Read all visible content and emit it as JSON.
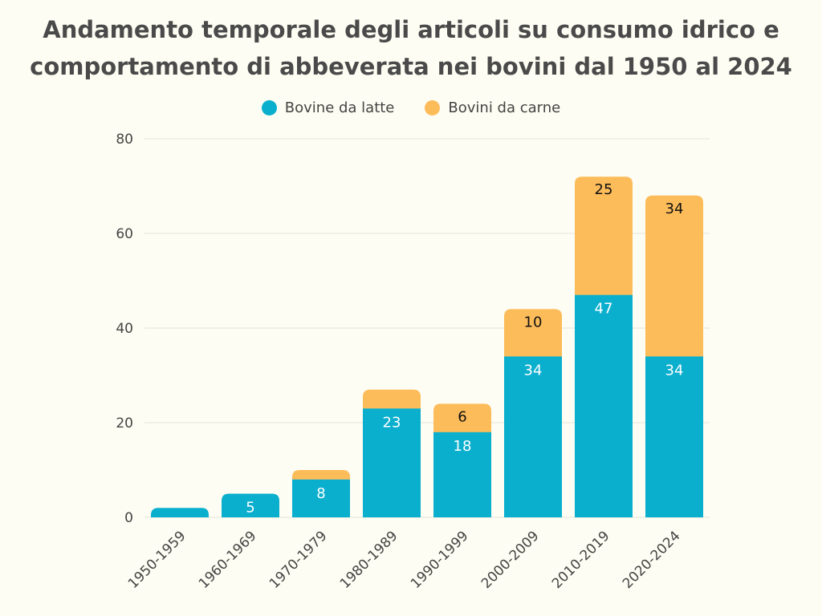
{
  "title_lines": [
    "Andamento temporale degli articoli su consumo idrico e",
    "comportamento di abbeverata nei bovini dal 1950 al 2024"
  ],
  "colors": {
    "dairy": "#0bafce",
    "beef": "#fdbc5a",
    "grid": "#e2e2d8",
    "text": "#444444"
  },
  "chart_data": {
    "type": "bar",
    "stacked": true,
    "title": "Andamento temporale degli articoli su consumo idrico e comportamento di abbeverata nei bovini dal 1950 al 2024",
    "xlabel": "",
    "ylabel": "",
    "ylim": [
      0,
      80
    ],
    "yticks": [
      0,
      20,
      40,
      60,
      80
    ],
    "grid": true,
    "legend_position": "top-center",
    "categories": [
      "1950-1959",
      "1960-1969",
      "1970-1979",
      "1980-1989",
      "1990-1999",
      "2000-2009",
      "2010-2019",
      "2020-2024"
    ],
    "series": [
      {
        "name": "Bovine da latte",
        "values": [
          2,
          5,
          8,
          23,
          18,
          34,
          47,
          34
        ],
        "labels": [
          "",
          "5",
          "8",
          "23",
          "18",
          "34",
          "47",
          "34"
        ]
      },
      {
        "name": "Bovini da carne",
        "values": [
          0,
          0,
          2,
          4,
          6,
          10,
          25,
          34
        ],
        "labels": [
          "",
          "",
          "",
          "",
          "6",
          "10",
          "25",
          "34"
        ]
      }
    ]
  }
}
